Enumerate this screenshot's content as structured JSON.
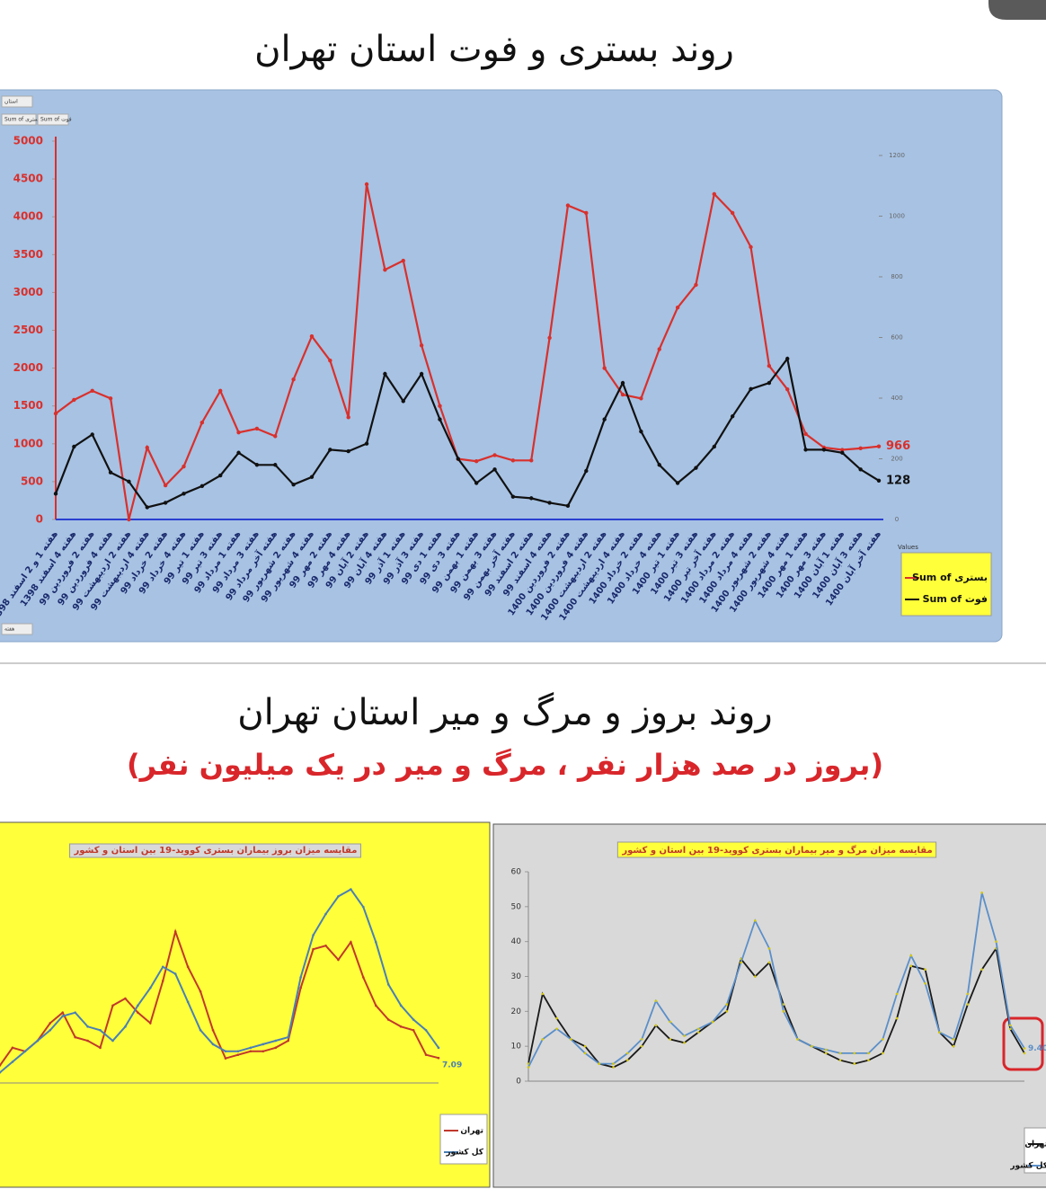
{
  "header": {
    "title": "روند بستری و فوت استان تهران"
  },
  "section2": {
    "title": "روند بروز و مرگ و میر استان تهران",
    "subtitle": "(بروز در صد هزار نفر ، مرگ و میر در یک میلیون نفر)"
  },
  "chart_data": [
    {
      "type": "line",
      "pivot_buttons": [
        "استان",
        "Sum of بستری",
        "Sum of فوت",
        "هفته"
      ],
      "legend_title": "Values",
      "legend": "right",
      "categories": [
        "هفته 1 و 2 اسفند 1398",
        "هفته 4 اسفند 1398",
        "هفته 2 فروردین 99",
        "هفته 4 فروردین 99",
        "هفته 2 اردیبهشت 99",
        "هفته 4 اردیبهشت 99",
        "هفته 2 خرداد 99",
        "هفته 4 خرداد 99",
        "هفته 1 تیر 99",
        "هفته 3 تیر 99",
        "هفته 1 مرداد 99",
        "هفته 3 مرداد 99",
        "هفته آخر مرداد 99",
        "هفته 2 شهریور 99",
        "هفته 4 شهریور 99",
        "هفته 2 مهر 99",
        "هفته 4 مهر 99",
        "هفته 2 آبان 99",
        "هفته 4 آبان 99",
        "هفته 1 آذر 99",
        "هفته 3 آذر 99",
        "هفته 1 دی 99",
        "هفته 3 دی 99",
        "هفته 1 بهمن 99",
        "هفته 3 بهمن 99",
        "هفته آخر بهمن 99",
        "هفته 2 اسفند 99",
        "هفته 4 اسفند 99",
        "هفته 2 فروردین 1400",
        "هفته 4 فروردین 1400",
        "هفته 2 اردیبهشت 1400",
        "هفته 4 اردیبهشت 1400",
        "هفته 2 خرداد 1400",
        "هفته 4 خرداد 1400",
        "هفته 1 تیر 1400",
        "هفته 3 تیر 1400",
        "هفته آخر تیر 1400",
        "هفته 2 مرداد 1400",
        "هفته 4 مرداد 1400",
        "هفته 2 شهریور 1400",
        "هفته 4 شهریور 1400",
        "هفته 1 مهر 1400",
        "هفته 3 مهر 1400",
        "هفته 1 آبان 1400",
        "هفته 3 آبان 1400",
        "هفته آخر آبان 1400"
      ],
      "series": [
        {
          "name": "Sum of بستری",
          "color": "#d9302c",
          "values": [
            1400,
            1580,
            1700,
            1600,
            0,
            950,
            450,
            700,
            1280,
            1700,
            1150,
            1200,
            1100,
            1850,
            2420,
            2100,
            1350,
            4430,
            3300,
            3420,
            2300,
            1500,
            800,
            770,
            850,
            780,
            780,
            2400,
            4150,
            4050,
            2000,
            1650,
            1600,
            2250,
            2800,
            3100,
            4300,
            4050,
            3600,
            2030,
            1720,
            1130,
            950,
            920,
            940,
            966
          ]
        },
        {
          "name": "Sum of فوت",
          "color": "#111111",
          "axis": "y2",
          "values": [
            85,
            240,
            280,
            155,
            125,
            40,
            55,
            85,
            110,
            145,
            220,
            180,
            180,
            115,
            140,
            230,
            225,
            250,
            480,
            390,
            480,
            330,
            200,
            120,
            165,
            75,
            70,
            55,
            45,
            160,
            330,
            450,
            290,
            180,
            120,
            170,
            240,
            340,
            430,
            450,
            530,
            230,
            230,
            220,
            165,
            128
          ]
        }
      ],
      "ylim": [
        0,
        5000
      ],
      "yticks": [
        0,
        500,
        1000,
        1500,
        2000,
        2500,
        3000,
        3500,
        4000,
        4500,
        5000
      ],
      "y2lim": [
        0,
        1200
      ],
      "y2ticks": [
        0,
        200,
        400,
        600,
        800,
        1000,
        1200
      ]
    },
    {
      "type": "line",
      "title": "مقایسه میزان بروز بیماران بستری کووید-19 بین استان و کشور",
      "legend": "right",
      "categories": [
        null,
        null,
        null,
        null,
        null,
        null,
        null,
        null,
        null,
        null,
        null,
        null,
        null,
        null,
        null,
        null,
        null,
        null,
        null,
        null,
        null,
        null,
        null,
        null,
        null,
        null,
        null,
        null,
        null,
        null,
        null,
        null,
        null,
        null,
        null,
        null
      ],
      "series": [
        {
          "name": "تهران",
          "color": "#c0392b",
          "values": [
            5,
            10,
            9,
            12,
            17,
            20,
            13,
            12,
            10,
            22,
            24,
            20,
            17,
            29,
            43,
            33,
            26,
            15,
            7,
            8,
            9,
            9,
            10,
            12,
            27,
            38,
            39,
            35,
            40,
            30,
            22,
            18,
            16,
            15,
            8,
            7.09
          ]
        },
        {
          "name": "کل کشور",
          "color": "#4a7fb5",
          "values": [
            3,
            6,
            9,
            12,
            15,
            19,
            20,
            16,
            15,
            12,
            16,
            22,
            27,
            33,
            31,
            23,
            15,
            11,
            9,
            9,
            10,
            11,
            12,
            13,
            30,
            42,
            48,
            53,
            55,
            50,
            40,
            28,
            22,
            18,
            15,
            10
          ]
        }
      ],
      "ylim": [
        0,
        60
      ]
    },
    {
      "type": "line",
      "title": "مقایسه میزان مرگ و میر بیماران بستری کووید-19 بین استان و کشور",
      "legend": "right",
      "categories": [
        null,
        null,
        null,
        null,
        null,
        null,
        null,
        null,
        null,
        null,
        null,
        null,
        null,
        null,
        null,
        null,
        null,
        null,
        null,
        null,
        null,
        null,
        null,
        null,
        null,
        null,
        null,
        null,
        null,
        null,
        null,
        null,
        null,
        null,
        null,
        null
      ],
      "series": [
        {
          "name": "تهران",
          "color": "#1a1a1a",
          "values": [
            5,
            25,
            18,
            12,
            10,
            5,
            4,
            6,
            10,
            16,
            12,
            11,
            14,
            17,
            20,
            35,
            30,
            34,
            22,
            12,
            10,
            8,
            6,
            5,
            6,
            8,
            18,
            33,
            32,
            14,
            10,
            22,
            32,
            38,
            15,
            8
          ]
        },
        {
          "name": "کل کشور",
          "color": "#5b8fc9",
          "values": [
            4,
            12,
            15,
            12,
            8,
            5,
            5,
            8,
            12,
            23,
            17,
            13,
            15,
            17,
            22,
            34,
            46,
            38,
            20,
            12,
            10,
            9,
            8,
            8,
            8,
            12,
            25,
            36,
            28,
            14,
            12,
            25,
            54,
            40,
            16,
            9.4
          ],
          "value_labels": [
            null,
            null,
            null,
            null,
            null,
            null,
            null,
            null,
            null,
            null,
            null,
            null,
            null,
            null,
            null,
            null,
            null,
            null,
            null,
            null,
            null,
            null,
            null,
            null,
            null,
            null,
            null,
            null,
            null,
            null,
            null,
            null,
            null,
            null,
            null,
            "9.40"
          ]
        }
      ],
      "ylim": [
        0,
        60
      ],
      "yticks": [
        0,
        10,
        20,
        30,
        40,
        50,
        60
      ]
    }
  ]
}
